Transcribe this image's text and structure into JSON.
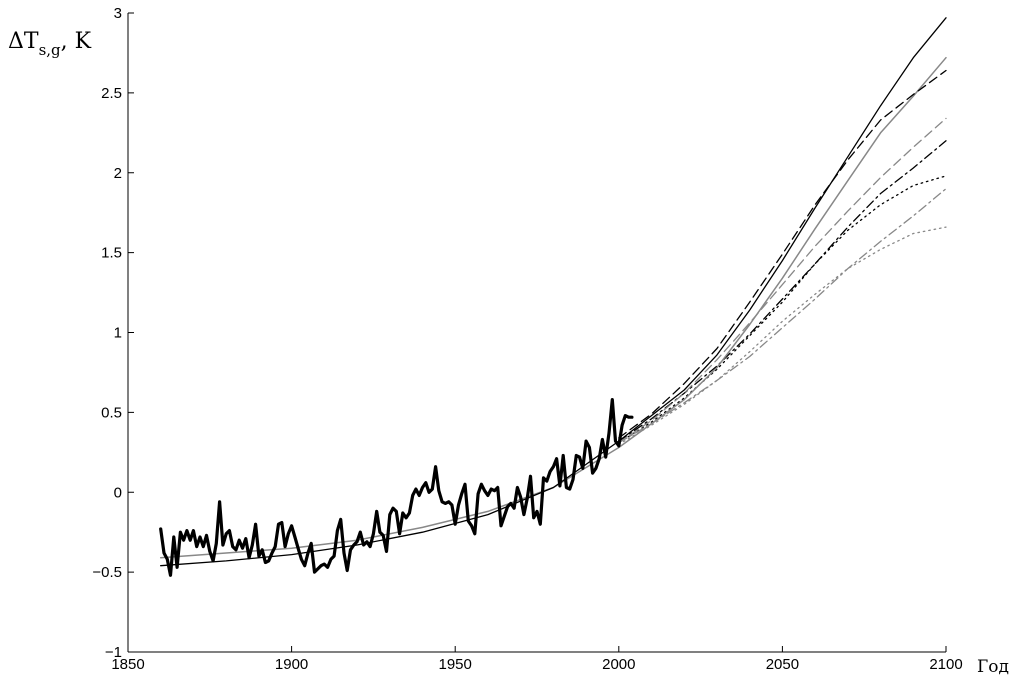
{
  "chart_data": {
    "type": "line",
    "ylabel": "ΔT",
    "ylabel_sub": "s,g",
    "ylabel_unit": ", K",
    "xlabel": "Год",
    "xlim": [
      1850,
      2100
    ],
    "ylim": [
      -1,
      3
    ],
    "x_ticks": [
      "1850",
      "1900",
      "1950",
      "2000",
      "2050",
      "2100"
    ],
    "y_ticks": [
      "−1",
      "−0.5",
      "0",
      "0.5",
      "1",
      "1.5",
      "2",
      "2.5",
      "3"
    ],
    "grid": false,
    "legend": "none",
    "series": [
      {
        "style": {
          "color": "#000000",
          "width": 3.2,
          "dash": ""
        },
        "points": [
          [
            1860,
            -0.23
          ],
          [
            1861,
            -0.38
          ],
          [
            1862,
            -0.42
          ],
          [
            1863,
            -0.52
          ],
          [
            1864,
            -0.28
          ],
          [
            1865,
            -0.47
          ],
          [
            1866,
            -0.25
          ],
          [
            1867,
            -0.3
          ],
          [
            1868,
            -0.24
          ],
          [
            1869,
            -0.3
          ],
          [
            1870,
            -0.24
          ],
          [
            1871,
            -0.34
          ],
          [
            1872,
            -0.28
          ],
          [
            1873,
            -0.34
          ],
          [
            1874,
            -0.27
          ],
          [
            1875,
            -0.37
          ],
          [
            1876,
            -0.43
          ],
          [
            1877,
            -0.32
          ],
          [
            1878,
            -0.06
          ],
          [
            1879,
            -0.33
          ],
          [
            1880,
            -0.26
          ],
          [
            1881,
            -0.24
          ],
          [
            1882,
            -0.34
          ],
          [
            1883,
            -0.36
          ],
          [
            1884,
            -0.3
          ],
          [
            1885,
            -0.35
          ],
          [
            1886,
            -0.29
          ],
          [
            1887,
            -0.41
          ],
          [
            1888,
            -0.33
          ],
          [
            1889,
            -0.2
          ],
          [
            1890,
            -0.4
          ],
          [
            1891,
            -0.36
          ],
          [
            1892,
            -0.44
          ],
          [
            1893,
            -0.43
          ],
          [
            1894,
            -0.38
          ],
          [
            1895,
            -0.34
          ],
          [
            1896,
            -0.2
          ],
          [
            1897,
            -0.19
          ],
          [
            1898,
            -0.34
          ],
          [
            1899,
            -0.26
          ],
          [
            1900,
            -0.21
          ],
          [
            1901,
            -0.28
          ],
          [
            1902,
            -0.35
          ],
          [
            1903,
            -0.42
          ],
          [
            1904,
            -0.46
          ],
          [
            1905,
            -0.38
          ],
          [
            1906,
            -0.32
          ],
          [
            1907,
            -0.5
          ],
          [
            1908,
            -0.48
          ],
          [
            1909,
            -0.46
          ],
          [
            1910,
            -0.45
          ],
          [
            1911,
            -0.47
          ],
          [
            1912,
            -0.42
          ],
          [
            1913,
            -0.4
          ],
          [
            1914,
            -0.24
          ],
          [
            1915,
            -0.17
          ],
          [
            1916,
            -0.38
          ],
          [
            1917,
            -0.49
          ],
          [
            1918,
            -0.36
          ],
          [
            1919,
            -0.33
          ],
          [
            1920,
            -0.31
          ],
          [
            1921,
            -0.25
          ],
          [
            1922,
            -0.33
          ],
          [
            1923,
            -0.31
          ],
          [
            1924,
            -0.34
          ],
          [
            1925,
            -0.26
          ],
          [
            1926,
            -0.12
          ],
          [
            1927,
            -0.25
          ],
          [
            1928,
            -0.27
          ],
          [
            1929,
            -0.37
          ],
          [
            1930,
            -0.14
          ],
          [
            1931,
            -0.1
          ],
          [
            1932,
            -0.12
          ],
          [
            1933,
            -0.26
          ],
          [
            1934,
            -0.13
          ],
          [
            1935,
            -0.16
          ],
          [
            1936,
            -0.13
          ],
          [
            1937,
            -0.02
          ],
          [
            1938,
            0.02
          ],
          [
            1939,
            -0.02
          ],
          [
            1940,
            0.03
          ],
          [
            1941,
            0.06
          ],
          [
            1942,
            0.0
          ],
          [
            1943,
            0.02
          ],
          [
            1944,
            0.16
          ],
          [
            1945,
            0.01
          ],
          [
            1946,
            -0.06
          ],
          [
            1947,
            -0.07
          ],
          [
            1948,
            -0.06
          ],
          [
            1949,
            -0.08
          ],
          [
            1950,
            -0.2
          ],
          [
            1951,
            -0.08
          ],
          [
            1952,
            -0.01
          ],
          [
            1953,
            0.05
          ],
          [
            1954,
            -0.18
          ],
          [
            1955,
            -0.21
          ],
          [
            1956,
            -0.26
          ],
          [
            1957,
            -0.01
          ],
          [
            1958,
            0.05
          ],
          [
            1959,
            0.01
          ],
          [
            1960,
            -0.02
          ],
          [
            1961,
            0.02
          ],
          [
            1962,
            0.01
          ],
          [
            1963,
            0.03
          ],
          [
            1964,
            -0.21
          ],
          [
            1965,
            -0.15
          ],
          [
            1966,
            -0.09
          ],
          [
            1967,
            -0.07
          ],
          [
            1968,
            -0.1
          ],
          [
            1969,
            0.03
          ],
          [
            1970,
            -0.03
          ],
          [
            1971,
            -0.14
          ],
          [
            1972,
            -0.04
          ],
          [
            1973,
            0.1
          ],
          [
            1974,
            -0.16
          ],
          [
            1975,
            -0.12
          ],
          [
            1976,
            -0.2
          ],
          [
            1977,
            0.09
          ],
          [
            1978,
            0.07
          ],
          [
            1979,
            0.13
          ],
          [
            1980,
            0.16
          ],
          [
            1981,
            0.21
          ],
          [
            1982,
            0.04
          ],
          [
            1983,
            0.23
          ],
          [
            1984,
            0.03
          ],
          [
            1985,
            0.02
          ],
          [
            1986,
            0.08
          ],
          [
            1987,
            0.23
          ],
          [
            1988,
            0.22
          ],
          [
            1989,
            0.15
          ],
          [
            1990,
            0.32
          ],
          [
            1991,
            0.28
          ],
          [
            1992,
            0.12
          ],
          [
            1993,
            0.15
          ],
          [
            1994,
            0.21
          ],
          [
            1995,
            0.33
          ],
          [
            1996,
            0.22
          ],
          [
            1997,
            0.37
          ],
          [
            1998,
            0.58
          ],
          [
            1999,
            0.32
          ],
          [
            2000,
            0.29
          ],
          [
            2001,
            0.42
          ],
          [
            2002,
            0.48
          ],
          [
            2003,
            0.47
          ],
          [
            2004,
            0.47
          ]
        ]
      },
      {
        "style": {
          "color": "#000000",
          "width": 1.3,
          "dash": ""
        },
        "points": [
          [
            1860,
            -0.46
          ],
          [
            1880,
            -0.43
          ],
          [
            1900,
            -0.39
          ],
          [
            1920,
            -0.33
          ],
          [
            1940,
            -0.25
          ],
          [
            1960,
            -0.14
          ],
          [
            1980,
            0.03
          ],
          [
            2000,
            0.32
          ],
          [
            2010,
            0.48
          ],
          [
            2020,
            0.64
          ],
          [
            2030,
            0.86
          ],
          [
            2040,
            1.14
          ],
          [
            2050,
            1.45
          ],
          [
            2060,
            1.78
          ],
          [
            2070,
            2.1
          ],
          [
            2080,
            2.42
          ],
          [
            2090,
            2.72
          ],
          [
            2100,
            2.97
          ]
        ]
      },
      {
        "style": {
          "color": "#000000",
          "width": 1.3,
          "dash": "9,5"
        },
        "points": [
          [
            2000,
            0.34
          ],
          [
            2010,
            0.49
          ],
          [
            2020,
            0.68
          ],
          [
            2030,
            0.9
          ],
          [
            2040,
            1.19
          ],
          [
            2050,
            1.49
          ],
          [
            2060,
            1.8
          ],
          [
            2070,
            2.08
          ],
          [
            2080,
            2.33
          ],
          [
            2090,
            2.49
          ],
          [
            2100,
            2.64
          ]
        ]
      },
      {
        "style": {
          "color": "#888888",
          "width": 1.5,
          "dash": ""
        },
        "points": [
          [
            1860,
            -0.41
          ],
          [
            1880,
            -0.38
          ],
          [
            1900,
            -0.35
          ],
          [
            1920,
            -0.3
          ],
          [
            1940,
            -0.22
          ],
          [
            1960,
            -0.12
          ],
          [
            1980,
            0.03
          ],
          [
            2000,
            0.28
          ],
          [
            2010,
            0.43
          ],
          [
            2020,
            0.58
          ],
          [
            2030,
            0.78
          ],
          [
            2040,
            1.05
          ],
          [
            2050,
            1.34
          ],
          [
            2060,
            1.65
          ],
          [
            2070,
            1.95
          ],
          [
            2080,
            2.25
          ],
          [
            2090,
            2.48
          ],
          [
            2100,
            2.72
          ]
        ]
      },
      {
        "style": {
          "color": "#888888",
          "width": 1.3,
          "dash": "9,5"
        },
        "points": [
          [
            2000,
            0.31
          ],
          [
            2010,
            0.45
          ],
          [
            2020,
            0.62
          ],
          [
            2030,
            0.83
          ],
          [
            2040,
            1.06
          ],
          [
            2050,
            1.3
          ],
          [
            2060,
            1.54
          ],
          [
            2070,
            1.76
          ],
          [
            2080,
            1.97
          ],
          [
            2090,
            2.16
          ],
          [
            2100,
            2.34
          ]
        ]
      },
      {
        "style": {
          "color": "#000000",
          "width": 1.3,
          "dash": "9,4,2,4"
        },
        "points": [
          [
            2000,
            0.32
          ],
          [
            2010,
            0.46
          ],
          [
            2020,
            0.62
          ],
          [
            2030,
            0.79
          ],
          [
            2040,
            0.99
          ],
          [
            2050,
            1.21
          ],
          [
            2060,
            1.43
          ],
          [
            2070,
            1.66
          ],
          [
            2080,
            1.87
          ],
          [
            2090,
            2.03
          ],
          [
            2100,
            2.2
          ]
        ]
      },
      {
        "style": {
          "color": "#888888",
          "width": 1.3,
          "dash": "9,4,2,4"
        },
        "points": [
          [
            2000,
            0.31
          ],
          [
            2010,
            0.43
          ],
          [
            2020,
            0.56
          ],
          [
            2030,
            0.7
          ],
          [
            2040,
            0.85
          ],
          [
            2050,
            1.03
          ],
          [
            2060,
            1.21
          ],
          [
            2070,
            1.4
          ],
          [
            2080,
            1.57
          ],
          [
            2090,
            1.73
          ],
          [
            2100,
            1.9
          ]
        ]
      },
      {
        "style": {
          "color": "#000000",
          "width": 1.3,
          "dash": "1.5,4"
        },
        "points": [
          [
            2000,
            0.31
          ],
          [
            2010,
            0.44
          ],
          [
            2020,
            0.59
          ],
          [
            2030,
            0.77
          ],
          [
            2040,
            0.98
          ],
          [
            2050,
            1.19
          ],
          [
            2060,
            1.43
          ],
          [
            2070,
            1.64
          ],
          [
            2080,
            1.8
          ],
          [
            2090,
            1.92
          ],
          [
            2100,
            1.98
          ]
        ]
      },
      {
        "style": {
          "color": "#888888",
          "width": 1.3,
          "dash": "1.5,4"
        },
        "points": [
          [
            2000,
            0.3
          ],
          [
            2010,
            0.42
          ],
          [
            2020,
            0.55
          ],
          [
            2030,
            0.7
          ],
          [
            2040,
            0.88
          ],
          [
            2050,
            1.07
          ],
          [
            2060,
            1.24
          ],
          [
            2070,
            1.4
          ],
          [
            2080,
            1.52
          ],
          [
            2090,
            1.62
          ],
          [
            2100,
            1.66
          ]
        ]
      }
    ]
  }
}
